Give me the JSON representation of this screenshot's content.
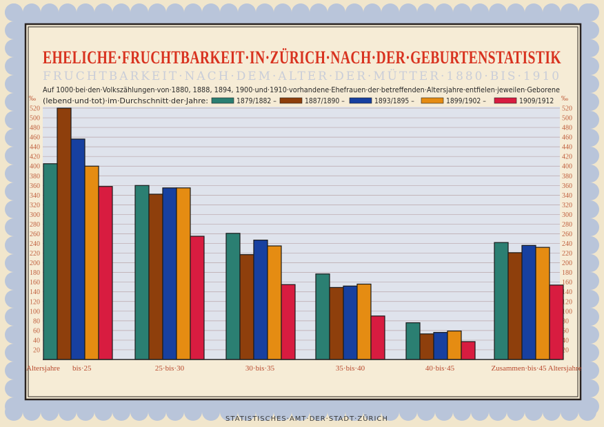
{
  "chart_data": {
    "type": "bar",
    "title": "EHELICHE·FRUCHTBARKEIT·IN·ZÜRICH·NACH·DER·GEBURTENSTATISTIK",
    "subtitle": "FRUCHTBARKEIT·NACH·DEM·ALTER·DER·MÜTTER·1880·BIS·1910",
    "description_line1": "Auf 1000·bei·den·Volkszählungen·von·1880, 1888, 1894, 1900·und·1910·vorhandene·Ehefrauen·der·betreffenden·Altersjahre·entfielen·jeweilen·Geborene",
    "description_line2": "(lebend·und·tot)·im·Durchschnitt·der·Jahre:",
    "unit_left": "‰",
    "unit_right": "‰",
    "xlabel": "Altersjahre",
    "categories": [
      "bis·25",
      "25·bis·30",
      "30·bis·35",
      "35·bis·40",
      "40·bis·45",
      "Zusammen·bis·45 Altersjahre"
    ],
    "series": [
      {
        "name": "1879/1882 –",
        "color": "#2b7f72",
        "values": [
          405,
          360,
          261,
          177,
          76,
          242
        ]
      },
      {
        "name": "1887/1890 –",
        "color": "#8e3f0c",
        "values": [
          520,
          342,
          217,
          149,
          53,
          221
        ]
      },
      {
        "name": "1893/1895 –",
        "color": "#1740a0",
        "values": [
          456,
          355,
          247,
          152,
          56,
          236
        ]
      },
      {
        "name": "1899/1902 –",
        "color": "#e58c12",
        "values": [
          400,
          355,
          235,
          156,
          59,
          232
        ]
      },
      {
        "name": "1909/1912",
        "color": "#d81c40",
        "values": [
          358,
          255,
          155,
          90,
          37,
          154
        ]
      }
    ],
    "ylim": [
      0,
      520
    ],
    "yticks": [
      20,
      40,
      60,
      80,
      100,
      120,
      140,
      160,
      180,
      200,
      220,
      240,
      260,
      280,
      300,
      320,
      340,
      360,
      380,
      400,
      420,
      440,
      460,
      480,
      500,
      520
    ],
    "grid": true,
    "legend": "top"
  },
  "footer": "STATISTISCHES·AMT·DER·STADT·ZÜRICH"
}
